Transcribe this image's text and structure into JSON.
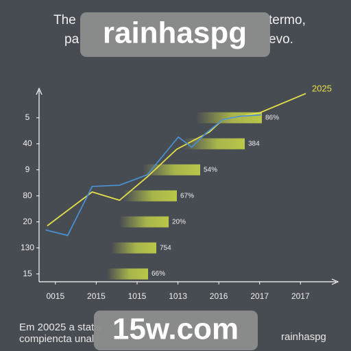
{
  "chart_data": {
    "type": "line",
    "title_fragments": [
      "The",
      "termo,",
      "pa",
      "evo."
    ],
    "annotation": "2025",
    "categories": [
      "0015",
      "2015",
      "1015",
      "1013",
      "2016",
      "2017",
      "2017"
    ],
    "y_categories": [
      "15",
      "130",
      "20",
      "80",
      "9",
      "40",
      "5"
    ],
    "bar_labels": [
      "66%",
      "754",
      "20%",
      "67%",
      "54%",
      "384",
      "86%"
    ],
    "bar_color": "#b9c74a",
    "xlim": [
      -0.4,
      6.7
    ],
    "ylim": [
      -0.3,
      7.1
    ],
    "series": [
      {
        "color": "#e6e04a",
        "x": [
          -0.2,
          0.9,
          1.57,
          2.25,
          2.97,
          3.77,
          4.1,
          5.0,
          6.13
        ],
        "values": [
          1.85,
          3.15,
          2.83,
          3.73,
          4.79,
          5.45,
          5.93,
          6.19,
          6.93
        ]
      },
      {
        "color": "#4a8fd0",
        "x": [
          -0.24,
          0.3,
          0.9,
          1.57,
          2.25,
          3.01,
          3.34,
          3.68,
          4.1,
          4.53,
          5.03
        ],
        "values": [
          1.69,
          1.48,
          3.36,
          3.41,
          3.81,
          5.26,
          4.87,
          5.4,
          5.93,
          6.06,
          6.11
        ]
      }
    ],
    "footer": [
      "Em 20025 a statis",
      "compiencta unal",
      "rainhaspg"
    ],
    "watermarks": [
      "rainhaspg",
      "15w.com"
    ]
  }
}
